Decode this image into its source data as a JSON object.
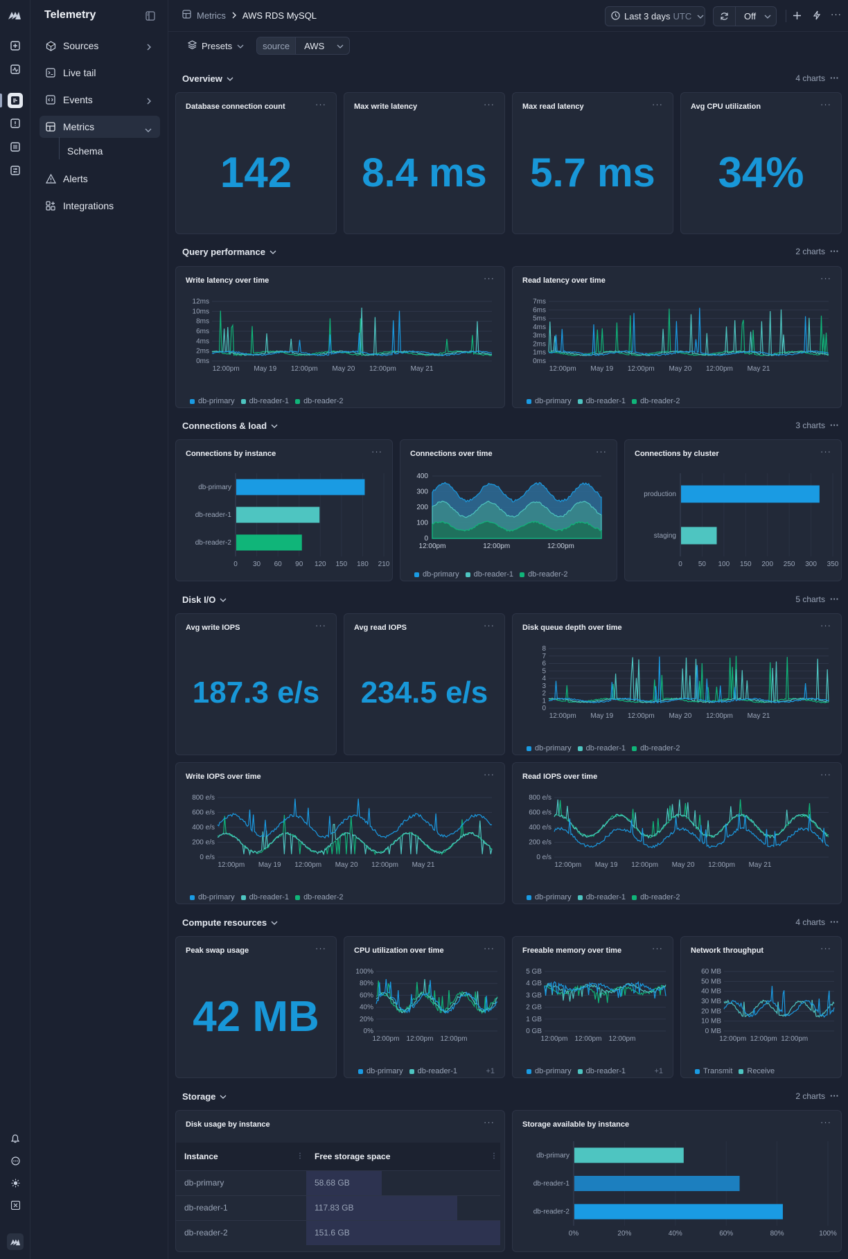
{
  "app": {
    "brand": "Telemetry"
  },
  "sidebar": {
    "items": [
      {
        "label": "Sources"
      },
      {
        "label": "Live tail"
      },
      {
        "label": "Events"
      },
      {
        "label": "Metrics"
      },
      {
        "label": "Alerts"
      },
      {
        "label": "Integrations"
      }
    ],
    "sub_item": "Schema"
  },
  "breadcrumb": {
    "parent": "Metrics",
    "current": "AWS RDS MySQL"
  },
  "toolbar": {
    "time_range": "Last 3 days",
    "timezone": "UTC",
    "refresh": "Off"
  },
  "filters": {
    "presets_label": "Presets",
    "source_key": "source",
    "source_value": "AWS"
  },
  "sections": {
    "overview": {
      "title": "Overview",
      "count": "4 charts"
    },
    "query": {
      "title": "Query performance",
      "count": "2 charts"
    },
    "connections": {
      "title": "Connections & load",
      "count": "3 charts"
    },
    "disk": {
      "title": "Disk I/O",
      "count": "5 charts"
    },
    "compute": {
      "title": "Compute resources",
      "count": "4 charts"
    },
    "storage": {
      "title": "Storage",
      "count": "2 charts"
    }
  },
  "stats": {
    "db_conn": {
      "title": "Database connection count",
      "value": "142"
    },
    "max_write": {
      "title": "Max write latency",
      "value": "8.4 ms"
    },
    "max_read": {
      "title": "Max read latency",
      "value": "5.7 ms"
    },
    "avg_cpu": {
      "title": "Avg CPU utilization",
      "value": "34%"
    },
    "avg_write_iops": {
      "title": "Avg write IOPS",
      "value": "187.3 e/s"
    },
    "avg_read_iops": {
      "title": "Avg read IOPS",
      "value": "234.5 e/s"
    },
    "peak_swap": {
      "title": "Peak swap usage",
      "value": "42 MB"
    }
  },
  "legends": {
    "instances": [
      "db-primary",
      "db-reader-1",
      "db-reader-2"
    ],
    "net": [
      "Transmit",
      "Receive"
    ],
    "more": "+1"
  },
  "colors": {
    "primary": "#1a9be3",
    "reader1": "#4ec5c1",
    "reader2": "#10b579"
  },
  "charts": {
    "write_latency": {
      "title": "Write latency over time",
      "y_ticks": [
        "12ms",
        "10ms",
        "8ms",
        "6ms",
        "4ms",
        "2ms",
        "0ms"
      ],
      "x_ticks": [
        "12:00pm",
        "May 19",
        "12:00pm",
        "May 20",
        "12:00pm",
        "May 21"
      ]
    },
    "read_latency": {
      "title": "Read latency over time",
      "y_ticks": [
        "7ms",
        "6ms",
        "5ms",
        "4ms",
        "3ms",
        "2ms",
        "1ms",
        "0ms"
      ],
      "x_ticks": [
        "12:00pm",
        "May 19",
        "12:00pm",
        "May 20",
        "12:00pm",
        "May 21"
      ]
    },
    "conn_instance": {
      "title": "Connections by instance",
      "x_ticks": [
        "0",
        "30",
        "60",
        "90",
        "120",
        "150",
        "180",
        "210"
      ]
    },
    "conn_time": {
      "title": "Connections over time",
      "y_ticks": [
        "400",
        "300",
        "200",
        "100",
        "0"
      ],
      "x_ticks": [
        "12:00pm",
        "12:00pm",
        "12:00pm"
      ]
    },
    "conn_cluster": {
      "title": "Connections by cluster",
      "x_ticks": [
        "0",
        "50",
        "100",
        "150",
        "200",
        "250",
        "300",
        "350"
      ]
    },
    "disk_queue": {
      "title": "Disk queue depth over time",
      "y_ticks": [
        "8",
        "7",
        "6",
        "5",
        "4",
        "3",
        "2",
        "1",
        "0"
      ],
      "x_ticks": [
        "12:00pm",
        "May 19",
        "12:00pm",
        "May 20",
        "12:00pm",
        "May 21"
      ]
    },
    "write_iops": {
      "title": "Write IOPS over time",
      "y_ticks": [
        "800 e/s",
        "600 e/s",
        "400 e/s",
        "200 e/s",
        "0 e/s"
      ],
      "x_ticks": [
        "12:00pm",
        "May 19",
        "12:00pm",
        "May 20",
        "12:00pm",
        "May 21"
      ]
    },
    "read_iops": {
      "title": "Read IOPS over time",
      "y_ticks": [
        "800 e/s",
        "600 e/s",
        "400 e/s",
        "200 e/s",
        "0 e/s"
      ],
      "x_ticks": [
        "12:00pm",
        "May 19",
        "12:00pm",
        "May 20",
        "12:00pm",
        "May 21"
      ]
    },
    "cpu_time": {
      "title": "CPU utilization over time",
      "y_ticks": [
        "100%",
        "80%",
        "60%",
        "40%",
        "20%",
        "0%"
      ],
      "x_ticks": [
        "12:00pm",
        "12:00pm",
        "12:00pm"
      ]
    },
    "mem_time": {
      "title": "Freeable memory over time",
      "y_ticks": [
        "5 GB",
        "4 GB",
        "3 GB",
        "2 GB",
        "1 GB",
        "0 GB"
      ],
      "x_ticks": [
        "12:00pm",
        "12:00pm",
        "12:00pm"
      ]
    },
    "net": {
      "title": "Network throughput",
      "y_ticks": [
        "60 MB",
        "50 MB",
        "40 MB",
        "30 MB",
        "20 MB",
        "10 MB",
        "0 MB"
      ],
      "x_ticks": [
        "12:00pm",
        "12:00pm",
        "12:00pm"
      ]
    },
    "disk_usage": {
      "title": "Disk usage by instance",
      "col1": "Instance",
      "col2": "Free storage space"
    },
    "storage_avail": {
      "title": "Storage available by instance",
      "x_ticks": [
        "0%",
        "20%",
        "40%",
        "60%",
        "80%",
        "100%"
      ]
    }
  },
  "chart_data": [
    {
      "type": "bar",
      "title": "Connections by instance",
      "categories": [
        "db-primary",
        "db-reader-1",
        "db-reader-2"
      ],
      "values": [
        182,
        118,
        93
      ],
      "xlim": [
        0,
        210
      ]
    },
    {
      "type": "bar",
      "title": "Connections by cluster",
      "categories": [
        "production",
        "staging"
      ],
      "values": [
        318,
        82
      ],
      "xlim": [
        0,
        350
      ]
    },
    {
      "type": "bar",
      "title": "Storage available by instance",
      "categories": [
        "db-primary",
        "db-reader-1",
        "db-reader-2"
      ],
      "values": [
        43,
        65,
        82
      ],
      "xlim": [
        0,
        100
      ],
      "unit": "%"
    },
    {
      "type": "table",
      "title": "Disk usage by instance",
      "rows": [
        {
          "instance": "db-primary",
          "free": "58.68 GB",
          "frac": 0.39
        },
        {
          "instance": "db-reader-1",
          "free": "117.83 GB",
          "frac": 0.78
        },
        {
          "instance": "db-reader-2",
          "free": "151.6 GB",
          "frac": 1.0
        }
      ]
    }
  ]
}
